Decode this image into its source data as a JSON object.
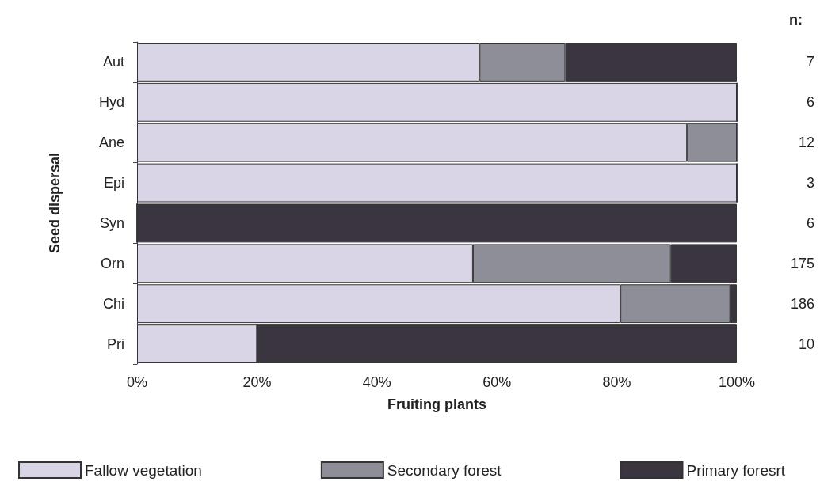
{
  "chart_data": {
    "type": "bar",
    "orientation": "horizontal",
    "stacked": true,
    "xlabel": "Fruiting plants",
    "ylabel": "Seed dispersal",
    "categories": [
      "Aut",
      "Hyd",
      "Ane",
      "Epi",
      "Syn",
      "Orn",
      "Chi",
      "Pri"
    ],
    "series": [
      {
        "name": "Fallow vegetation",
        "color": "#d9d5e6",
        "values": [
          57.1,
          100,
          91.7,
          100,
          0,
          56,
          80.6,
          20
        ]
      },
      {
        "name": "Secondary forest",
        "color": "#8e8e98",
        "values": [
          14.3,
          0,
          8.3,
          0,
          0,
          33,
          18.3,
          0
        ]
      },
      {
        "name": "Primary foresrt",
        "color": "#3b3540",
        "values": [
          28.6,
          0,
          0,
          0,
          100,
          11,
          1.1,
          80
        ]
      }
    ],
    "xlim": [
      0,
      100
    ],
    "xticks": [
      {
        "value": 0,
        "label": "0%"
      },
      {
        "value": 20,
        "label": "20%"
      },
      {
        "value": 40,
        "label": "40%"
      },
      {
        "value": 60,
        "label": "60%"
      },
      {
        "value": 80,
        "label": "80%"
      },
      {
        "value": 100,
        "label": "100%"
      }
    ],
    "annotations": [
      "n:",
      "7",
      "6",
      "12",
      "3",
      "6",
      "175",
      "186",
      "10"
    ],
    "grid": false,
    "legend": "bottom"
  }
}
